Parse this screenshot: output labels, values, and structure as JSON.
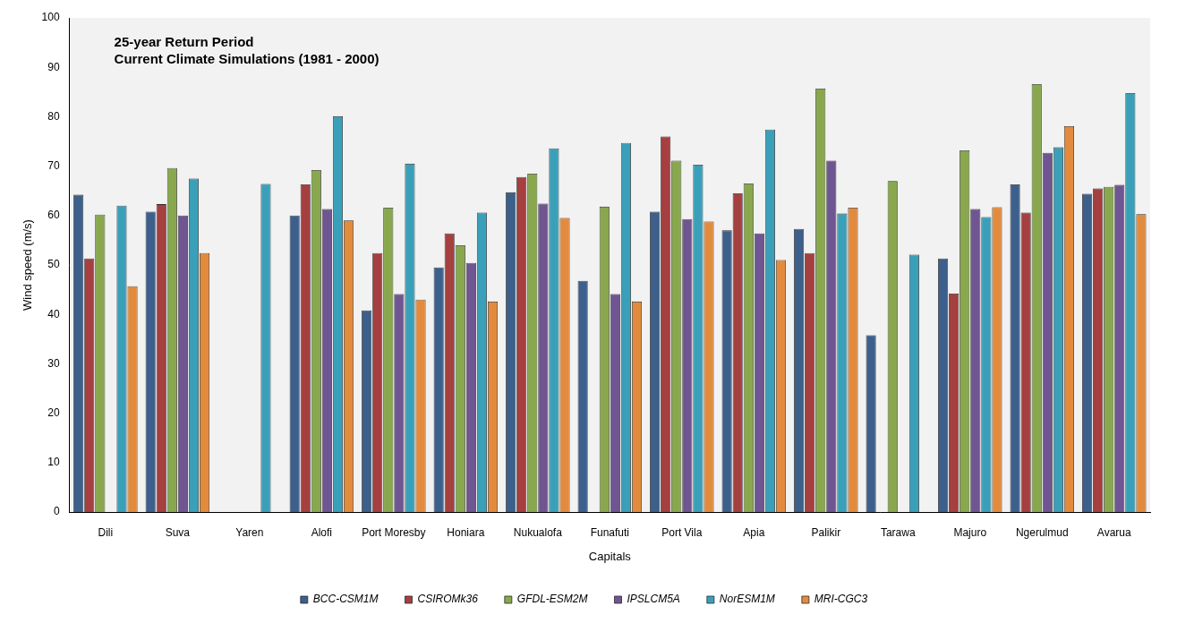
{
  "chart_data": {
    "type": "bar",
    "title": [
      "25-year Return Period",
      "Current Climate Simulations (1981 - 2000)"
    ],
    "x_label": "Capitals",
    "y_label": "Wind speed (m/s)",
    "categories": [
      "Dili",
      "Suva",
      "Yaren",
      "Alofi",
      "Port Moresby",
      "Honiara",
      "Nukualofa",
      "Funafuti",
      "Port Vila",
      "Apia",
      "Palikir",
      "Tarawa",
      "Majuro",
      "Ngerulmud",
      "Avarua"
    ],
    "series": [
      {
        "name": "BCC-CSM1M",
        "color": "#3d5f8c",
        "values": [
          64.2,
          60.8,
          null,
          60.0,
          40.8,
          49.5,
          64.7,
          46.8,
          60.8,
          57.0,
          57.3,
          35.8,
          51.3,
          66.3,
          64.4
        ]
      },
      {
        "name": "CSIROMk36",
        "color": "#a63f3f",
        "values": [
          51.3,
          62.3,
          null,
          66.3,
          52.4,
          56.4,
          67.8,
          null,
          76.0,
          64.5,
          52.4,
          null,
          44.2,
          60.6,
          65.5
        ]
      },
      {
        "name": "GFDL-ESM2M",
        "color": "#89a84e",
        "values": [
          60.2,
          69.6,
          null,
          69.2,
          61.6,
          54.0,
          68.5,
          61.8,
          71.1,
          66.5,
          85.7,
          67.0,
          73.2,
          86.6,
          65.8
        ]
      },
      {
        "name": "IPSLCM5A",
        "color": "#6f5591",
        "values": [
          null,
          60.0,
          null,
          61.3,
          44.1,
          50.4,
          62.4,
          44.1,
          59.3,
          56.4,
          71.1,
          null,
          61.3,
          72.7,
          66.2
        ]
      },
      {
        "name": "NorESM1M",
        "color": "#3aa0b9",
        "values": [
          62.0,
          67.5,
          66.4,
          80.1,
          70.5,
          60.6,
          73.6,
          74.7,
          70.3,
          77.4,
          60.4,
          52.1,
          59.7,
          73.8,
          84.8
        ]
      },
      {
        "name": "MRI-CGC3",
        "color": "#e38b3d",
        "values": [
          45.7,
          52.4,
          null,
          59.0,
          43.0,
          42.6,
          59.5,
          42.6,
          58.8,
          51.0,
          61.6,
          null,
          61.7,
          78.1,
          60.3
        ]
      }
    ],
    "ylim": [
      0,
      100
    ],
    "yticks": [
      0,
      10,
      20,
      30,
      40,
      50,
      60,
      70,
      80,
      90,
      100
    ],
    "grid": false,
    "legend": "bottom"
  }
}
